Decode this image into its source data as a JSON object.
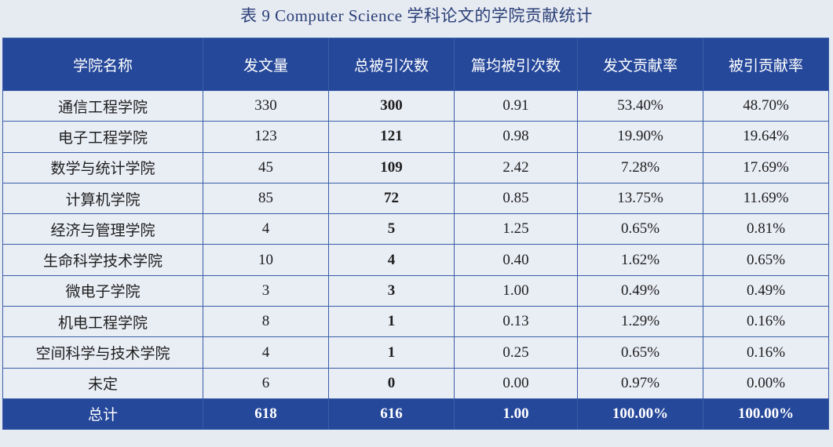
{
  "title": "表 9 Computer Science 学科论文的学院贡献统计",
  "table": {
    "columns": [
      "学院名称",
      "发文量",
      "总被引次数",
      "篇均被引次数",
      "发文贡献率",
      "被引贡献率"
    ],
    "rows": [
      [
        "通信工程学院",
        "330",
        "300",
        "0.91",
        "53.40%",
        "48.70%"
      ],
      [
        "电子工程学院",
        "123",
        "121",
        "0.98",
        "19.90%",
        "19.64%"
      ],
      [
        "数学与统计学院",
        "45",
        "109",
        "2.42",
        "7.28%",
        "17.69%"
      ],
      [
        "计算机学院",
        "85",
        "72",
        "0.85",
        "13.75%",
        "11.69%"
      ],
      [
        "经济与管理学院",
        "4",
        "5",
        "1.25",
        "0.65%",
        "0.81%"
      ],
      [
        "生命科学技术学院",
        "10",
        "4",
        "0.40",
        "1.62%",
        "0.65%"
      ],
      [
        "微电子学院",
        "3",
        "3",
        "1.00",
        "0.49%",
        "0.49%"
      ],
      [
        "机电工程学院",
        "8",
        "1",
        "0.13",
        "1.29%",
        "0.16%"
      ],
      [
        "空间科学与技术学院",
        "4",
        "1",
        "0.25",
        "0.65%",
        "0.16%"
      ],
      [
        "未定",
        "6",
        "0",
        "0.00",
        "0.97%",
        "0.00%"
      ]
    ],
    "total": [
      "总计",
      "618",
      "616",
      "1.00",
      "100.00%",
      "100.00%"
    ]
  }
}
